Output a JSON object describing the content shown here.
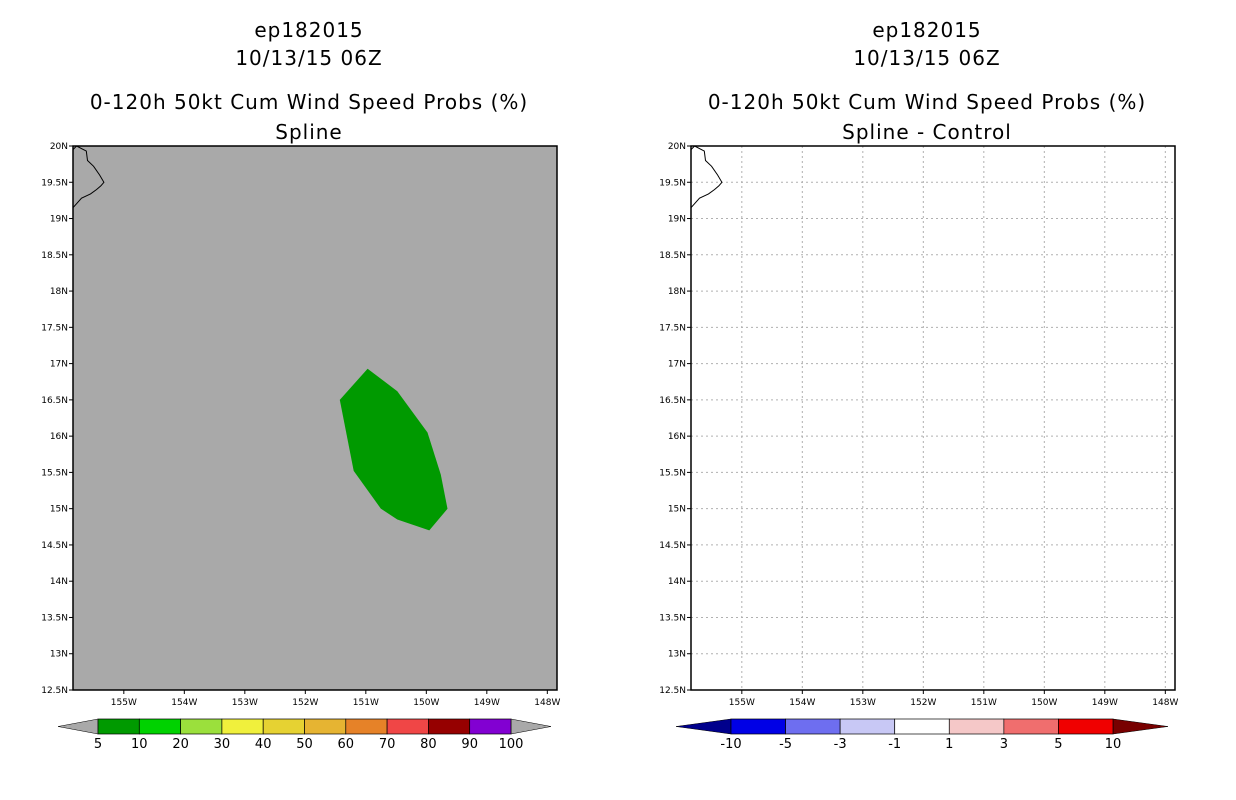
{
  "panels": [
    {
      "storm_id": "ep182015",
      "datetime": "10/13/15 06Z",
      "product": "0-120h 50kt Cum Wind Speed Probs (%)",
      "subtitle": "Spline",
      "lat_labels": [
        "20N",
        "19.5N",
        "19N",
        "18.5N",
        "18N",
        "17.5N",
        "17N",
        "16.5N",
        "16N",
        "15.5N",
        "15N",
        "14.5N",
        "14N",
        "13.5N",
        "13N",
        "12.5N"
      ],
      "lon_labels": [
        "155W",
        "154W",
        "153W",
        "152W",
        "151W",
        "150W",
        "149W",
        "148W"
      ],
      "background_color": "#a9a9a9",
      "contour_region": {
        "value_range": "5-10%",
        "color": "#009a00"
      },
      "colorbar": {
        "colors": [
          "#009a00",
          "#00d200",
          "#9be03c",
          "#f0f03c",
          "#e6d232",
          "#e6b432",
          "#e68228",
          "#f04646",
          "#960000",
          "#8200d2"
        ],
        "labels": [
          "5",
          "10",
          "20",
          "30",
          "40",
          "50",
          "60",
          "70",
          "80",
          "90",
          "100"
        ],
        "end_color": "#a9a9a9"
      }
    },
    {
      "storm_id": "ep182015",
      "datetime": "10/13/15 06Z",
      "product": "0-120h 50kt Cum Wind Speed Probs (%)",
      "subtitle": "Spline - Control",
      "lat_labels": [
        "20N",
        "19.5N",
        "19N",
        "18.5N",
        "18N",
        "17.5N",
        "17N",
        "16.5N",
        "16N",
        "15.5N",
        "15N",
        "14.5N",
        "14N",
        "13.5N",
        "13N",
        "12.5N"
      ],
      "lon_labels": [
        "155W",
        "154W",
        "153W",
        "152W",
        "151W",
        "150W",
        "149W",
        "148W"
      ],
      "background_color": "#ffffff",
      "colorbar": {
        "colors": [
          "#0000e6",
          "#6e6ef0",
          "#c8c8f5",
          "#ffffff",
          "#f5c8c8",
          "#f06e6e",
          "#f00000"
        ],
        "labels": [
          "-10",
          "-5",
          "-3",
          "-1",
          "1",
          "3",
          "5",
          "10"
        ],
        "low_end_color": "#00008c",
        "high_end_color": "#780000"
      }
    }
  ]
}
